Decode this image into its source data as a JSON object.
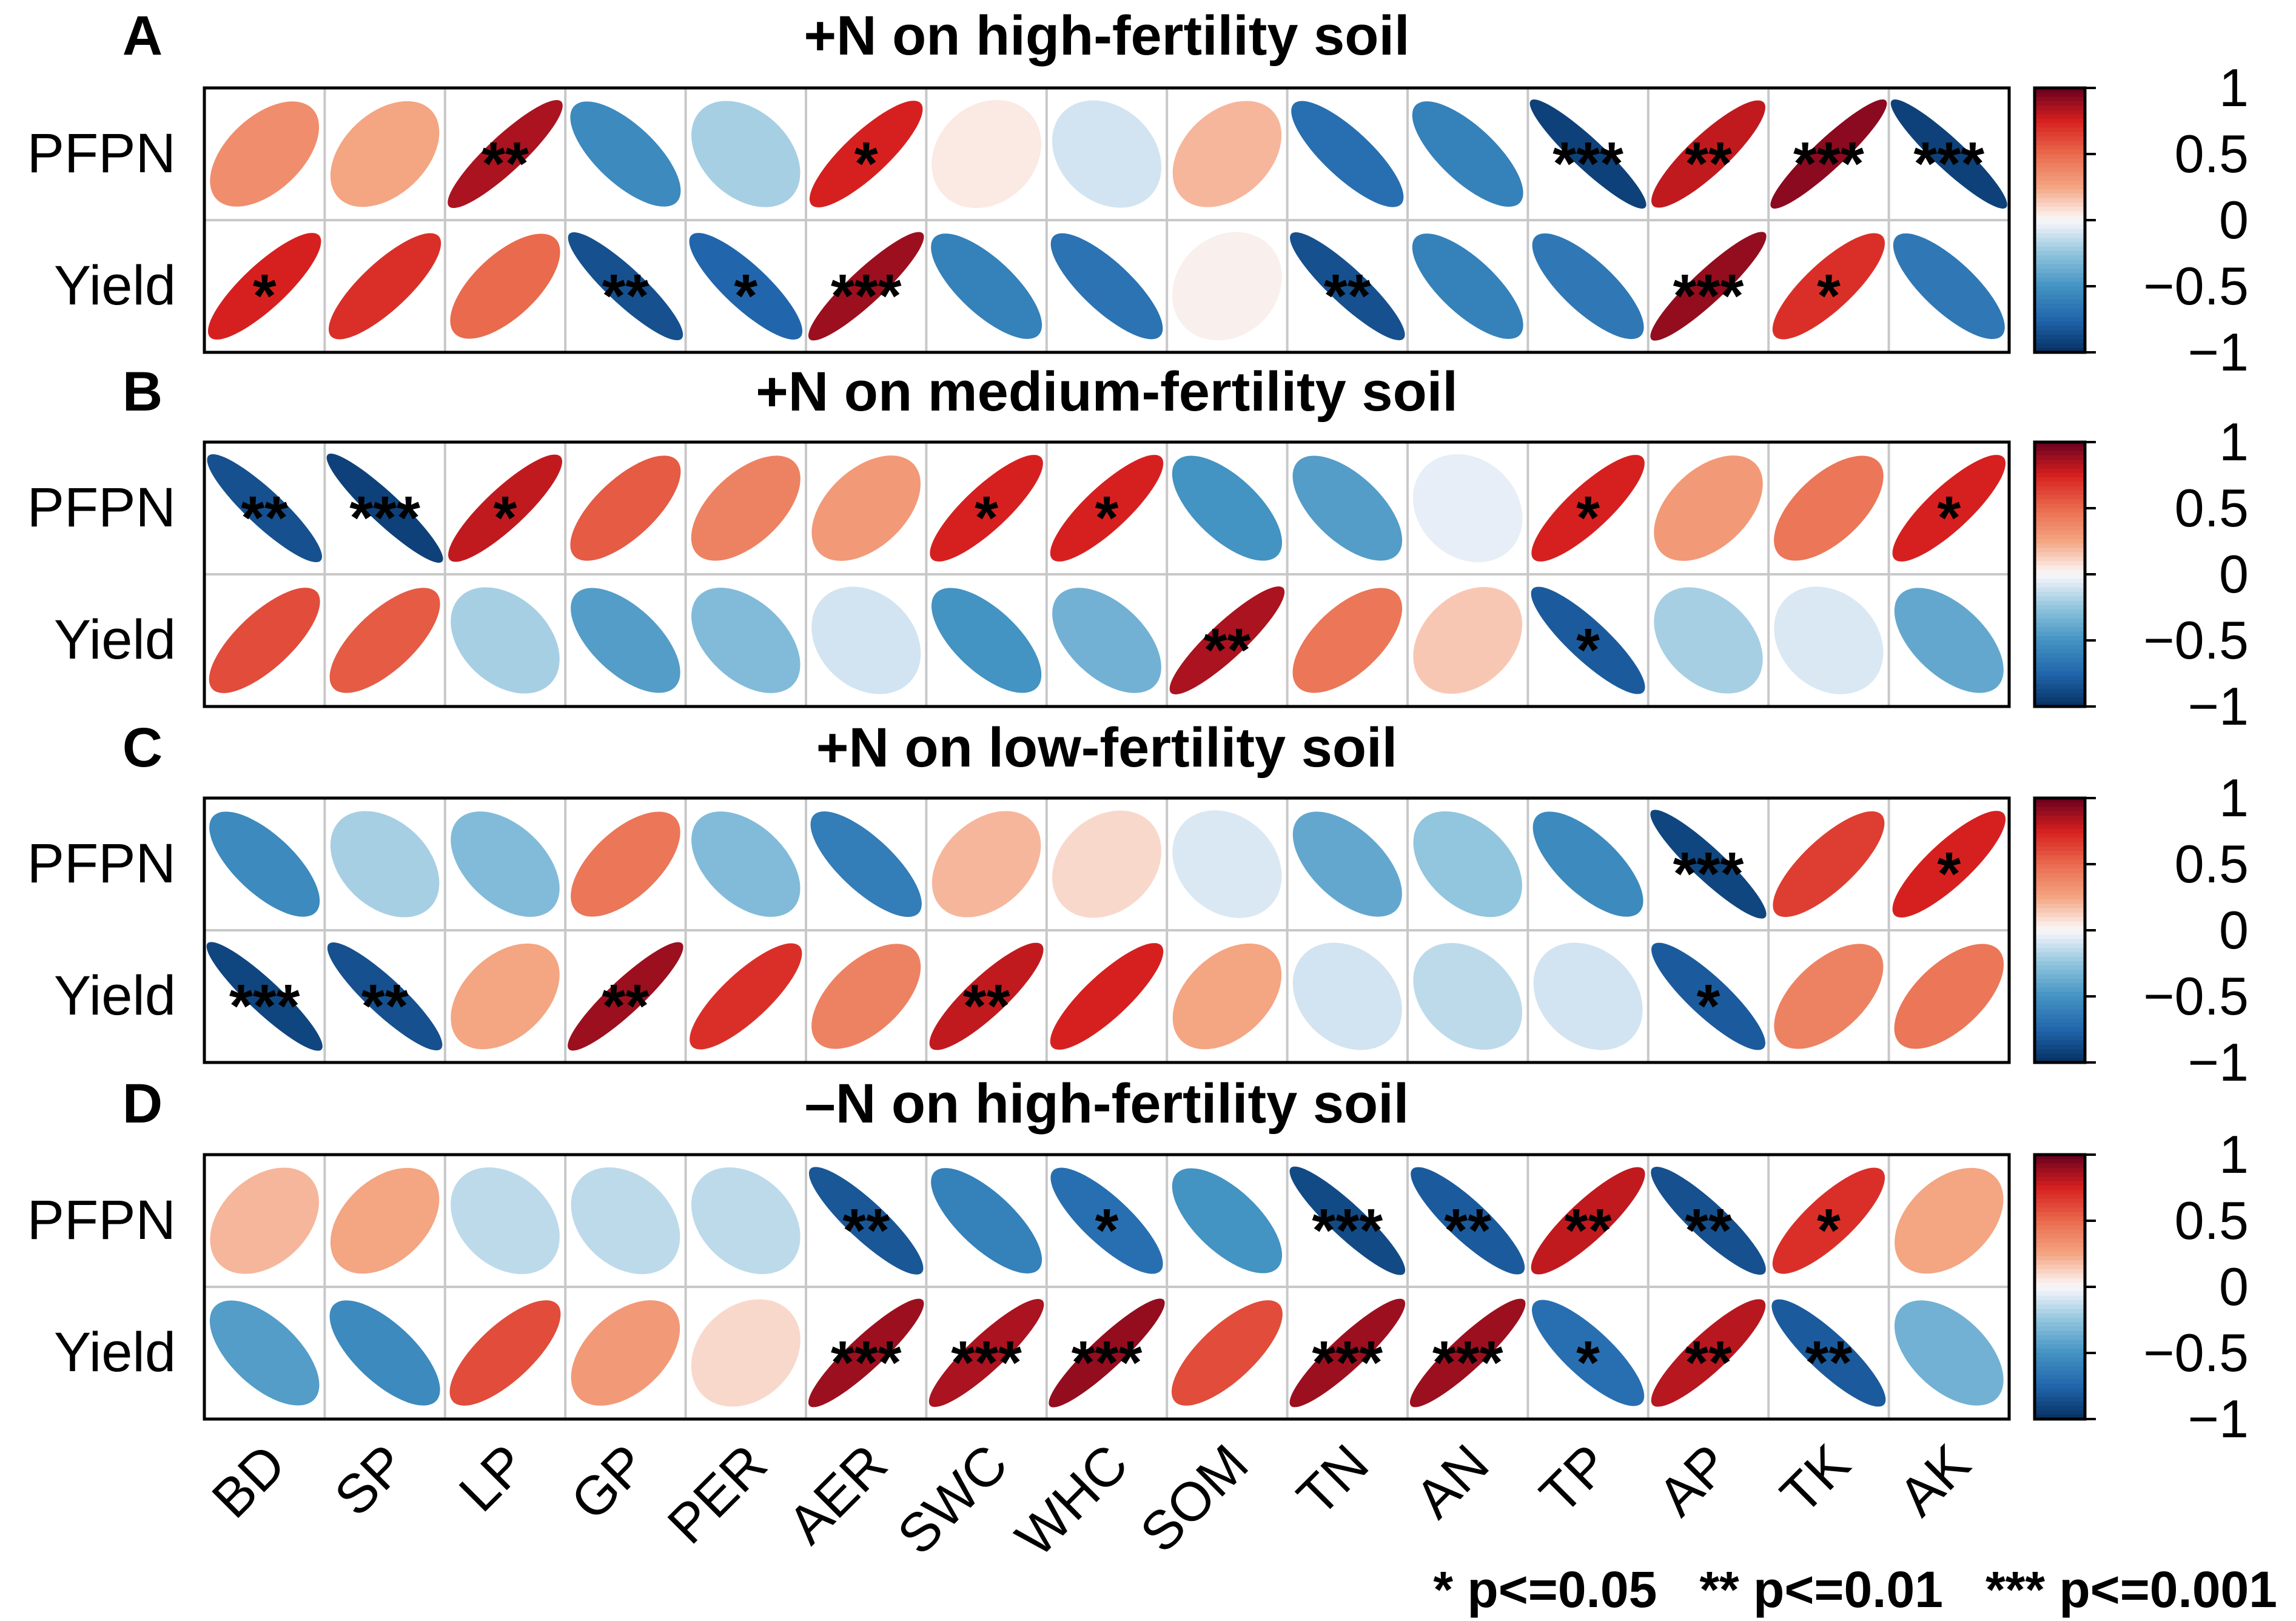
{
  "chart_data": {
    "type": "correlation-matrix",
    "variables": [
      "BD",
      "SP",
      "LP",
      "GP",
      "PER",
      "AER",
      "SWC",
      "WHC",
      "SOM",
      "TN",
      "AN",
      "TP",
      "AP",
      "TK",
      "AK"
    ],
    "rows": [
      "PFPN",
      "Yield"
    ],
    "colorbar": {
      "range": [
        -1,
        1
      ],
      "ticks": [
        "1",
        "0.5",
        "0",
        "−0.5",
        "−1"
      ],
      "low_color": "#053061",
      "mid_color": "#f7f7f7",
      "high_color": "#67001f"
    },
    "legend": "* p<=0.05   ** p<=0.01   *** p<=0.001",
    "panels": [
      {
        "label": "A",
        "title": "+N on high-fertility soil",
        "values": [
          [
            0.35,
            0.25,
            0.85,
            -0.55,
            -0.2,
            0.75,
            0.05,
            -0.1,
            0.2,
            -0.7,
            -0.6,
            -0.92,
            0.8,
            0.92,
            -0.92
          ],
          [
            0.75,
            0.7,
            0.5,
            -0.85,
            -0.75,
            0.88,
            -0.6,
            -0.68,
            0.03,
            -0.85,
            -0.6,
            -0.65,
            0.9,
            0.7,
            -0.65
          ]
        ],
        "stars": [
          [
            "",
            "",
            "**",
            "",
            "",
            "*",
            "",
            "",
            "",
            "",
            "",
            "***",
            "**",
            "***",
            "***"
          ],
          [
            "*",
            "",
            "",
            "**",
            "*",
            "***",
            "",
            "",
            "",
            "**",
            "",
            "",
            "***",
            "*",
            ""
          ]
        ]
      },
      {
        "label": "B",
        "title": "+N on medium-fertility soil",
        "values": [
          [
            -0.85,
            -0.92,
            0.8,
            0.55,
            0.4,
            0.3,
            0.75,
            0.75,
            -0.5,
            -0.45,
            -0.05,
            0.75,
            0.3,
            0.45,
            0.75
          ],
          [
            0.6,
            0.55,
            -0.2,
            -0.45,
            -0.3,
            -0.1,
            -0.5,
            -0.35,
            0.85,
            0.45,
            0.15,
            -0.8,
            -0.2,
            -0.08,
            -0.4
          ]
        ],
        "stars": [
          [
            "**",
            "***",
            "*",
            "",
            "",
            "",
            "*",
            "*",
            "",
            "",
            "",
            "*",
            "",
            "",
            "*"
          ],
          [
            "",
            "",
            "",
            "",
            "",
            "",
            "",
            "",
            "**",
            "",
            "",
            "*",
            "",
            "",
            ""
          ]
        ]
      },
      {
        "label": "C",
        "title": "+N on low-fertility soil",
        "values": [
          [
            -0.55,
            -0.2,
            -0.3,
            0.45,
            -0.3,
            -0.62,
            0.2,
            0.1,
            -0.08,
            -0.4,
            -0.25,
            -0.55,
            -0.9,
            0.65,
            0.75
          ],
          [
            -0.9,
            -0.85,
            0.25,
            0.88,
            0.7,
            0.4,
            0.8,
            0.75,
            0.25,
            -0.1,
            -0.15,
            -0.1,
            -0.8,
            0.4,
            0.45
          ]
        ],
        "stars": [
          [
            "",
            "",
            "",
            "",
            "",
            "",
            "",
            "",
            "",
            "",
            "",
            "",
            "***",
            "",
            "*"
          ],
          [
            "***",
            "**",
            "",
            "**",
            "",
            "",
            "**",
            "",
            "",
            "",
            "",
            "",
            "*",
            "",
            ""
          ]
        ]
      },
      {
        "label": "D",
        "title": "–N on high-fertility soil",
        "values": [
          [
            0.2,
            0.25,
            -0.15,
            -0.15,
            -0.15,
            -0.82,
            -0.6,
            -0.7,
            -0.5,
            -0.88,
            -0.8,
            0.8,
            -0.85,
            0.7,
            0.25
          ],
          [
            -0.45,
            -0.55,
            0.6,
            0.3,
            0.1,
            0.88,
            0.85,
            0.9,
            0.6,
            0.88,
            0.88,
            -0.7,
            0.82,
            -0.8,
            -0.35
          ]
        ],
        "stars": [
          [
            "",
            "",
            "",
            "",
            "",
            "**",
            "",
            "*",
            "",
            "***",
            "**",
            "**",
            "**",
            "*",
            ""
          ],
          [
            "",
            "",
            "",
            "",
            "",
            "***",
            "***",
            "***",
            "",
            "***",
            "***",
            "*",
            "**",
            "**",
            ""
          ]
        ]
      }
    ]
  }
}
